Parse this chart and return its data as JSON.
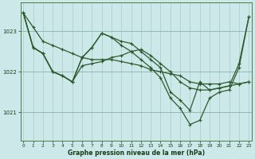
{
  "title": "Graphe pression niveau de la mer (hPa)",
  "bg_color": "#cce8e8",
  "grid_color": "#aacccc",
  "line_color": "#2d5a2d",
  "marker_color": "#2d5a2d",
  "x_labels": [
    "0",
    "1",
    "2",
    "3",
    "4",
    "5",
    "6",
    "7",
    "8",
    "9",
    "10",
    "11",
    "12",
    "13",
    "14",
    "15",
    "16",
    "17",
    "18",
    "19",
    "20",
    "21",
    "22",
    "23"
  ],
  "yticks": [
    1021,
    1022,
    1023
  ],
  "ylim": [
    1020.3,
    1023.7
  ],
  "xlim": [
    -0.3,
    23.3
  ],
  "series": [
    [
      1023.45,
      1023.1,
      1022.75,
      1022.65,
      1022.55,
      1022.45,
      1022.35,
      1022.3,
      1022.3,
      1022.3,
      1022.25,
      1022.2,
      1022.15,
      1022.05,
      1022.0,
      1021.95,
      1021.9,
      1021.75,
      1021.7,
      1021.7,
      1021.7,
      1021.75,
      1021.7,
      1021.75
    ],
    [
      1023.45,
      1022.6,
      1022.45,
      1022.0,
      1021.9,
      1021.75,
      1022.15,
      1022.2,
      1022.25,
      1022.35,
      1022.4,
      1022.5,
      1022.55,
      1022.4,
      1022.2,
      1022.0,
      1021.75,
      1021.6,
      1021.55,
      1021.55,
      1021.6,
      1021.65,
      1021.7,
      1021.75
    ],
    [
      1023.45,
      1022.6,
      1022.45,
      1022.0,
      1021.9,
      1021.75,
      1022.35,
      1022.6,
      1022.95,
      1022.85,
      1022.75,
      1022.7,
      1022.5,
      1022.3,
      1022.1,
      1021.5,
      1021.3,
      1021.05,
      1021.75,
      1021.55,
      1021.6,
      1021.65,
      1022.2,
      1023.35
    ],
    [
      1023.45,
      1022.6,
      1022.45,
      1022.0,
      1021.9,
      1021.75,
      1022.35,
      1022.6,
      1022.95,
      1022.85,
      1022.65,
      1022.5,
      1022.3,
      1022.1,
      1021.85,
      1021.35,
      1021.1,
      1020.7,
      1020.8,
      1021.35,
      1021.5,
      1021.55,
      1022.1,
      1023.35
    ]
  ]
}
